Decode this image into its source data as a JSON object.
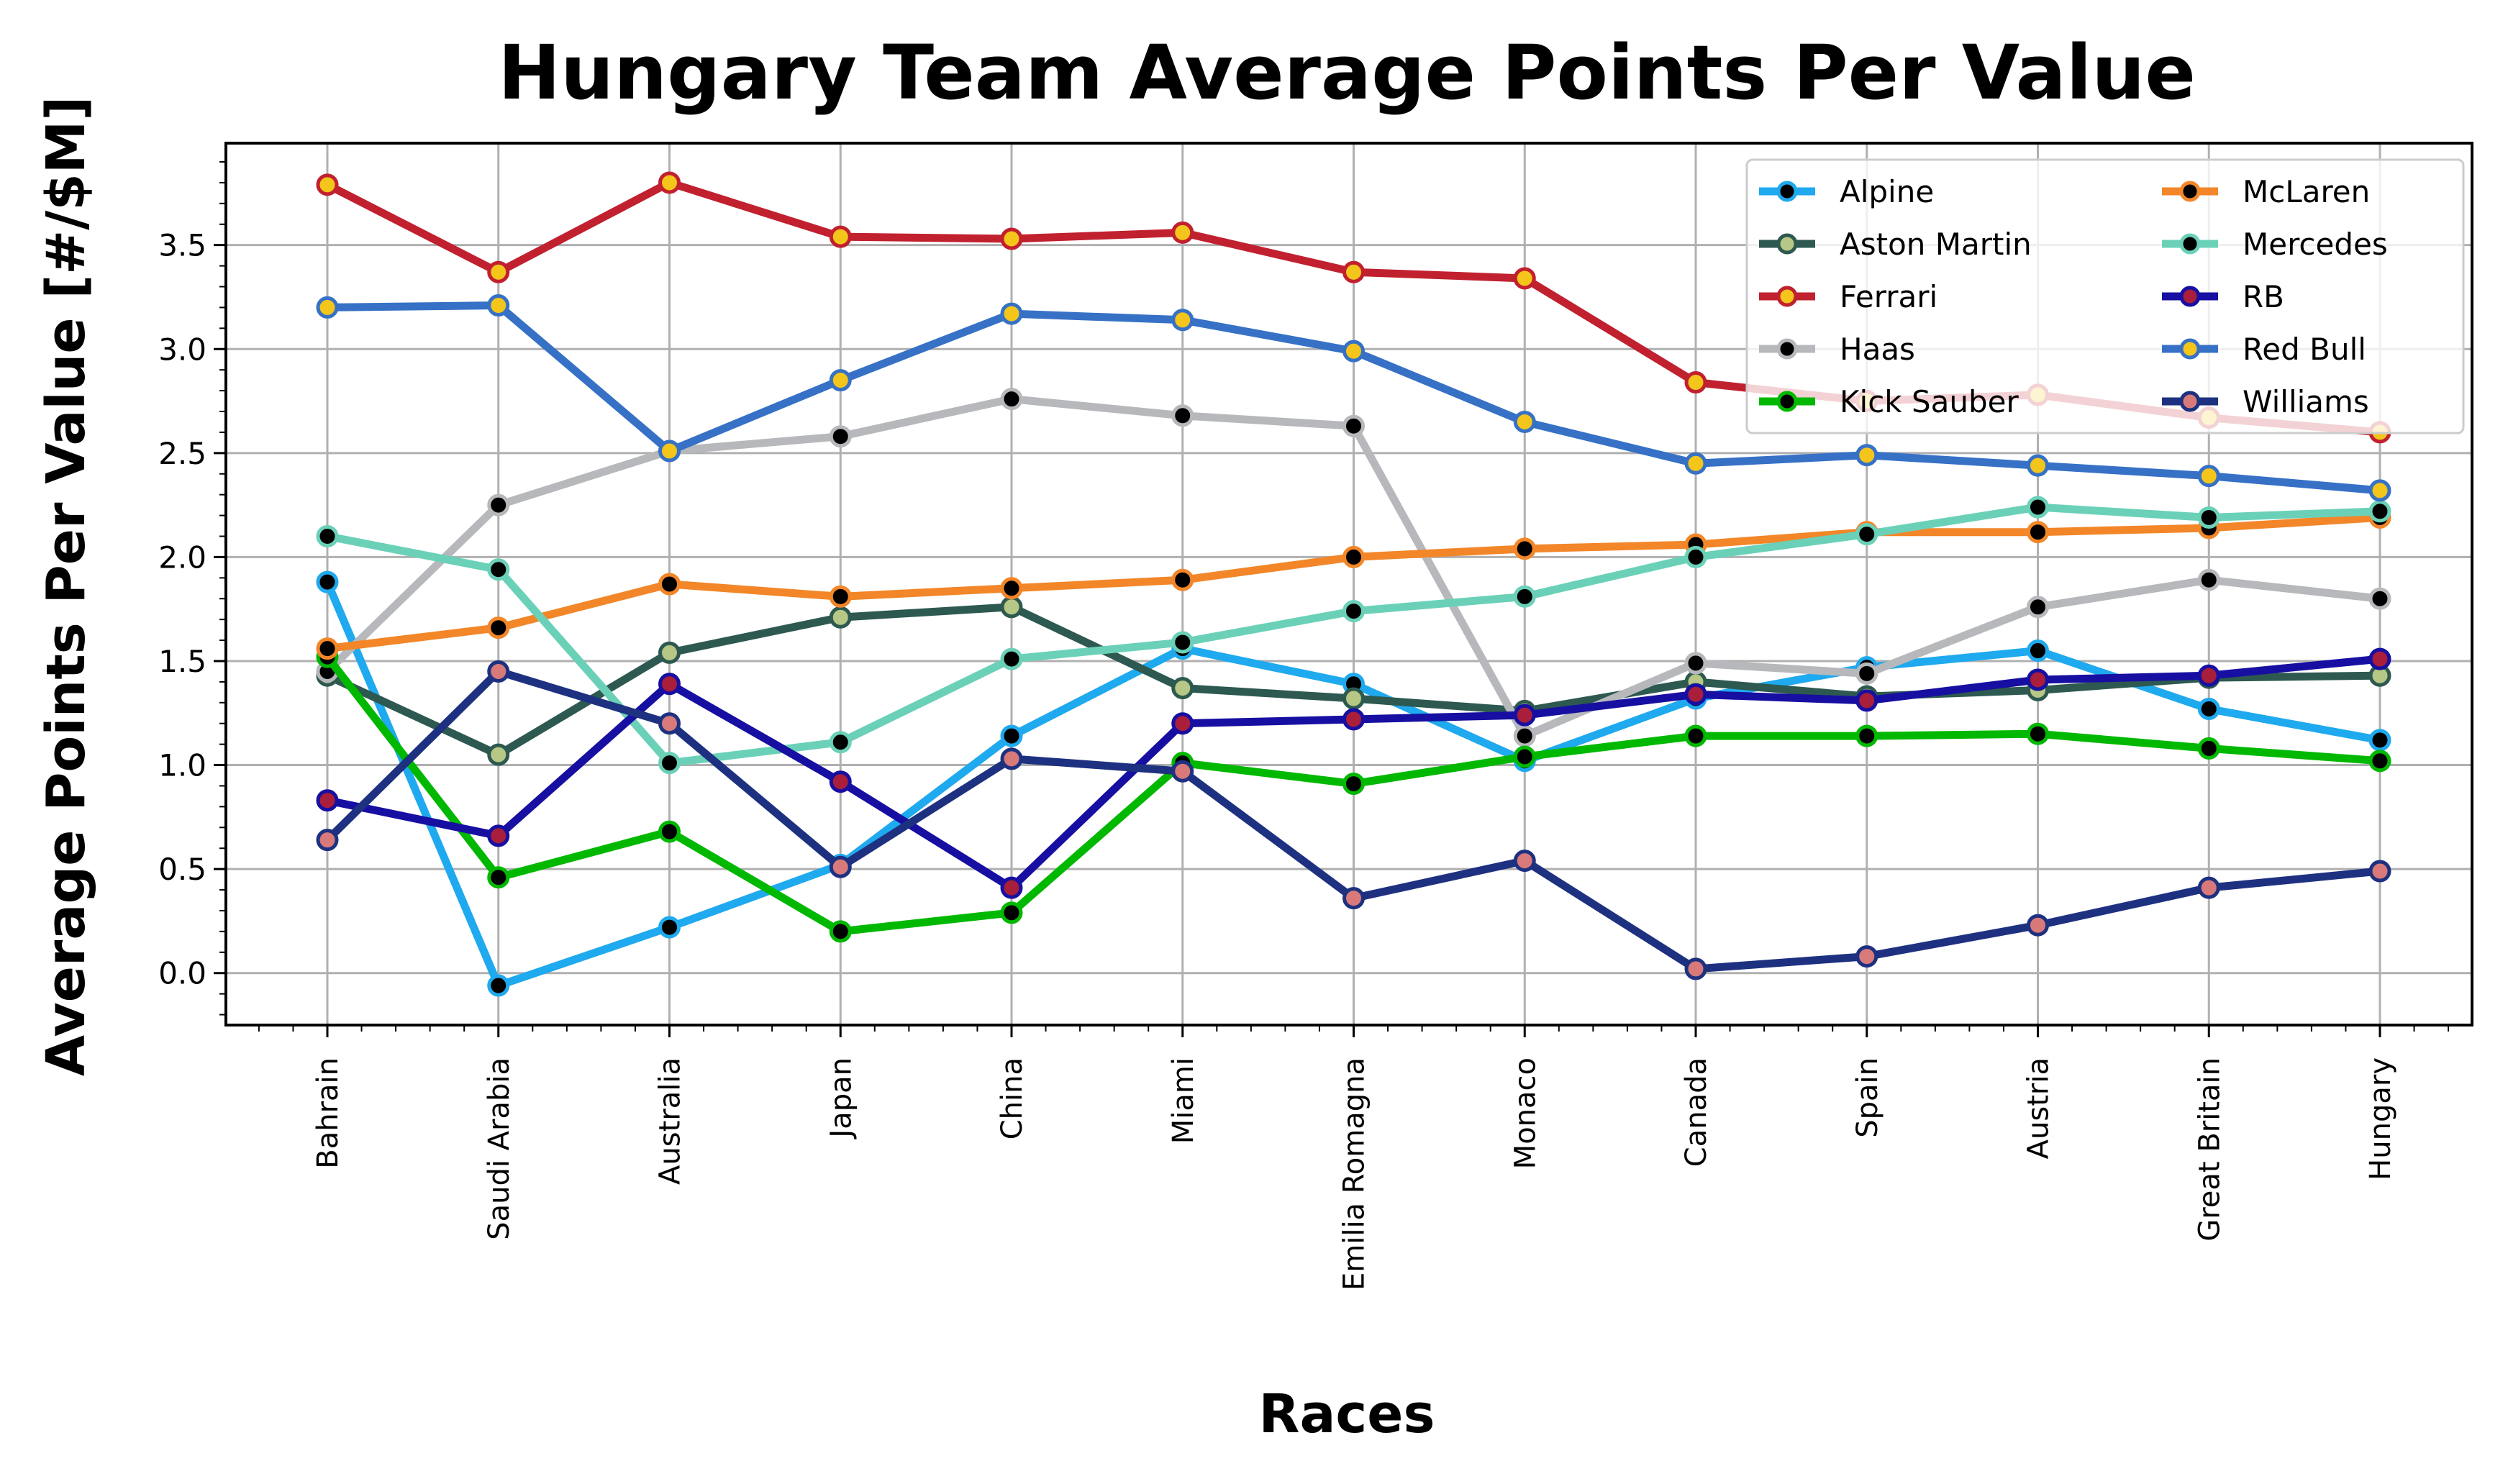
{
  "chart_data": {
    "type": "line",
    "title": "Hungary Team Average Points Per Value",
    "xlabel": "Races",
    "ylabel": "Average Points Per Value [#/$M]",
    "categories": [
      "Bahrain",
      "Saudi Arabia",
      "Australia",
      "Japan",
      "China",
      "Miami",
      "Emilia Romagna",
      "Monaco",
      "Canada",
      "Spain",
      "Austria",
      "Great Britain",
      "Hungary"
    ],
    "ylim": [
      -0.25,
      3.99
    ],
    "yticks": [
      0.0,
      0.5,
      1.0,
      1.5,
      2.0,
      2.5,
      3.0,
      3.5
    ],
    "ytick_labels": [
      "0.0",
      "0.5",
      "1.0",
      "1.5",
      "2.0",
      "2.5",
      "3.0",
      "3.5"
    ],
    "grid": true,
    "legend_position": "top-right",
    "legend_columns": 2,
    "series": [
      {
        "name": "Alpine",
        "color": "#1fa9ee",
        "marker_fill": "#000000",
        "values": [
          1.88,
          -0.06,
          0.22,
          0.52,
          1.14,
          1.56,
          1.39,
          1.02,
          1.32,
          1.47,
          1.55,
          1.27,
          1.12
        ]
      },
      {
        "name": "Aston Martin",
        "color": "#2d5950",
        "marker_fill": "#b7c785",
        "values": [
          1.43,
          1.05,
          1.54,
          1.71,
          1.76,
          1.37,
          1.32,
          1.26,
          1.4,
          1.33,
          1.36,
          1.42,
          1.43
        ]
      },
      {
        "name": "Ferrari",
        "color": "#c1202f",
        "marker_fill": "#f4c51a",
        "values": [
          3.79,
          3.37,
          3.8,
          3.54,
          3.53,
          3.56,
          3.37,
          3.34,
          2.84,
          2.75,
          2.78,
          2.67,
          2.6
        ]
      },
      {
        "name": "Haas",
        "color": "#b6b8bb",
        "marker_fill": "#000000",
        "values": [
          1.45,
          2.25,
          2.51,
          2.58,
          2.76,
          2.68,
          2.63,
          1.14,
          1.49,
          1.44,
          1.76,
          1.89,
          1.8
        ]
      },
      {
        "name": "Kick Sauber",
        "color": "#00b800",
        "marker_fill": "#000000",
        "values": [
          1.52,
          0.46,
          0.68,
          0.2,
          0.29,
          1.01,
          0.91,
          1.04,
          1.14,
          1.14,
          1.15,
          1.08,
          1.02
        ]
      },
      {
        "name": "McLaren",
        "color": "#f28628",
        "marker_fill": "#000000",
        "values": [
          1.56,
          1.66,
          1.87,
          1.81,
          1.85,
          1.89,
          2.0,
          2.04,
          2.06,
          2.12,
          2.12,
          2.14,
          2.19
        ]
      },
      {
        "name": "Mercedes",
        "color": "#6ad1b8",
        "marker_fill": "#000000",
        "values": [
          2.1,
          1.94,
          1.01,
          1.11,
          1.51,
          1.59,
          1.74,
          1.81,
          2.0,
          2.11,
          2.24,
          2.19,
          2.22
        ]
      },
      {
        "name": "RB",
        "color": "#170fa1",
        "marker_fill": "#a81e3b",
        "values": [
          0.83,
          0.66,
          1.39,
          0.92,
          0.41,
          1.2,
          1.22,
          1.24,
          1.34,
          1.31,
          1.41,
          1.43,
          1.51
        ]
      },
      {
        "name": "Red Bull",
        "color": "#3671c6",
        "marker_fill": "#f4c51a",
        "values": [
          3.2,
          3.21,
          2.51,
          2.85,
          3.17,
          3.14,
          2.99,
          2.65,
          2.45,
          2.49,
          2.44,
          2.39,
          2.32
        ]
      },
      {
        "name": "Williams",
        "color": "#1e3180",
        "marker_fill": "#d97a7a",
        "values": [
          0.64,
          1.45,
          1.2,
          0.51,
          1.03,
          0.97,
          0.36,
          0.54,
          0.02,
          0.08,
          0.23,
          0.41,
          0.49
        ]
      }
    ]
  }
}
